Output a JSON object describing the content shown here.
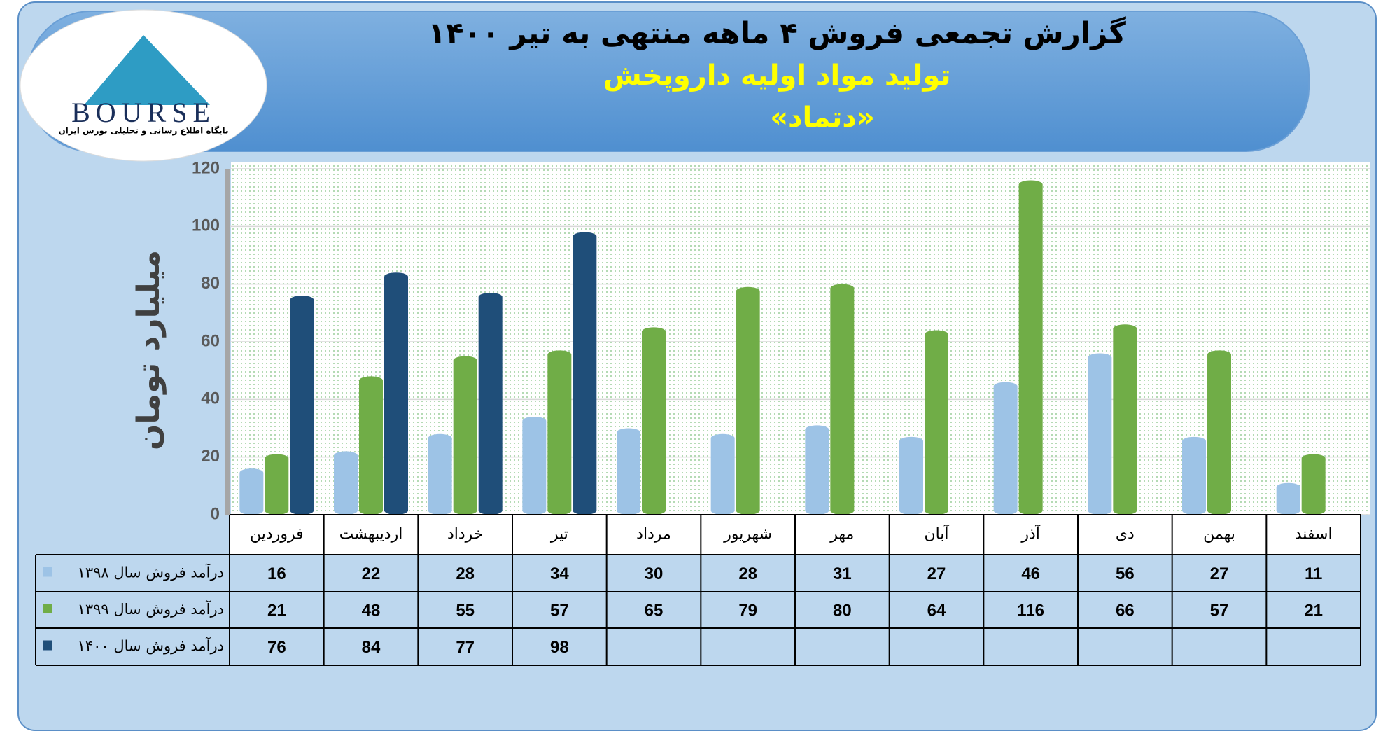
{
  "chart_data": {
    "type": "bar",
    "title": "گزارش تجمعی فروش ۴ ماهه منتهی به تیر ۱۴۰۰",
    "subtitle": "تولید مواد اولیه داروپخش",
    "symbol": "«دتماد»",
    "logo_name": "BOURSE",
    "logo_tagline": "پایگاه اطلاع رسانی و تحلیلی بورس ایران",
    "ylabel": "میلیارد تومان",
    "categories": [
      "فروردین",
      "اردیبهشت",
      "خرداد",
      "تیر",
      "مرداد",
      "شهریور",
      "مهر",
      "آبان",
      "آذر",
      "دی",
      "بهمن",
      "اسفند"
    ],
    "series": [
      {
        "name": "درآمد فروش سال ۱۳۹۸",
        "color": "#9dc3e6",
        "values": [
          16,
          22,
          28,
          34,
          30,
          28,
          31,
          27,
          46,
          56,
          27,
          11
        ]
      },
      {
        "name": "درآمد فروش سال ۱۳۹۹",
        "color": "#70ad47",
        "values": [
          21,
          48,
          55,
          57,
          65,
          79,
          80,
          64,
          116,
          66,
          57,
          21
        ]
      },
      {
        "name": "درآمد فروش سال ۱۴۰۰",
        "color": "#1f4e79",
        "values": [
          76,
          84,
          77,
          98,
          null,
          null,
          null,
          null,
          null,
          null,
          null,
          null
        ]
      }
    ],
    "ylim": [
      0,
      120
    ],
    "yticks": [
      0,
      20,
      40,
      60,
      80,
      100,
      120
    ],
    "grid": true
  }
}
